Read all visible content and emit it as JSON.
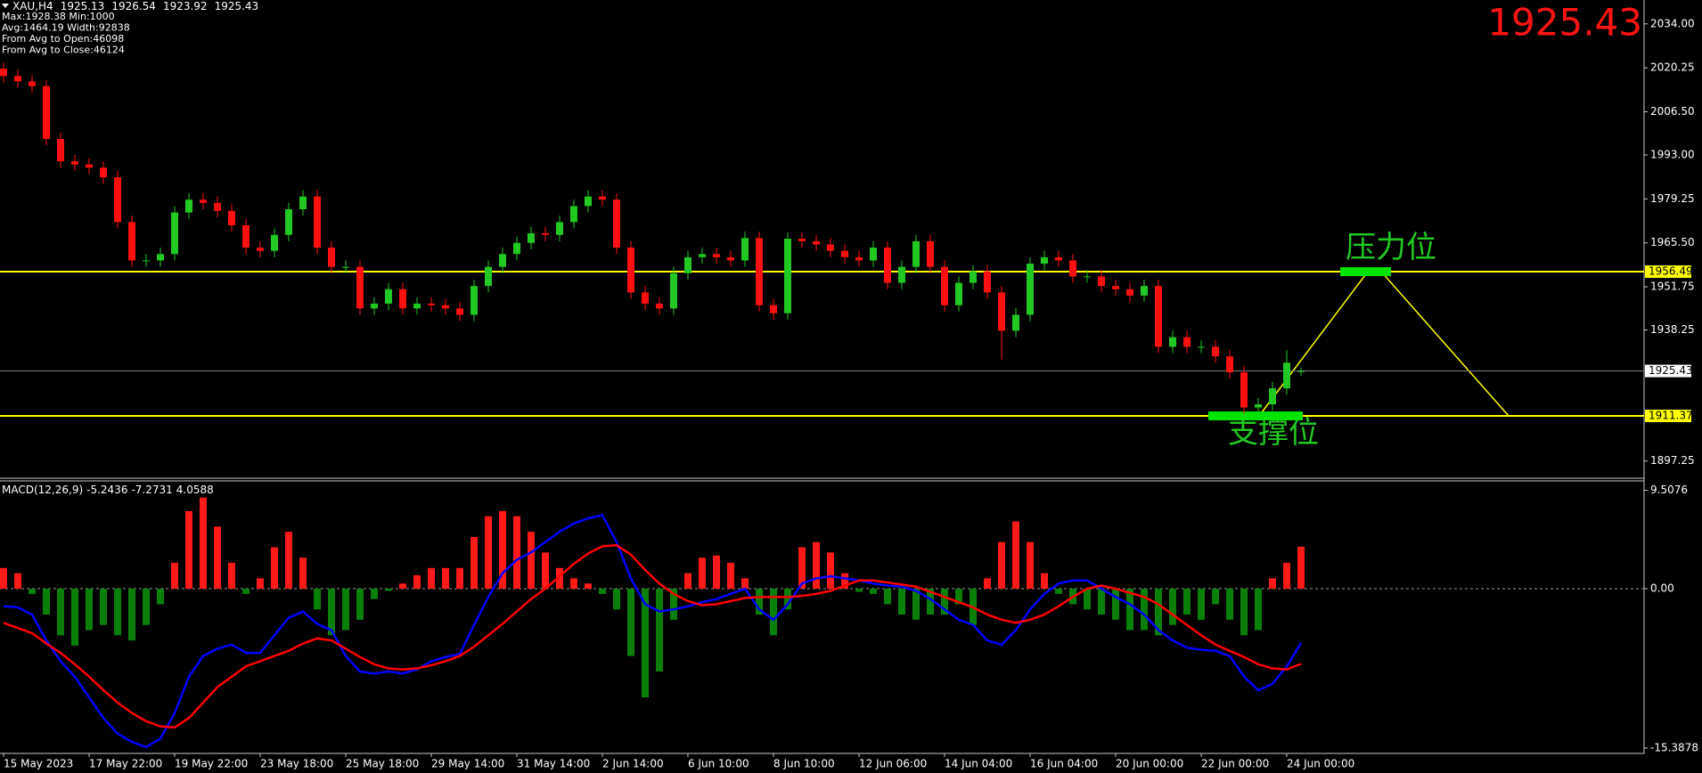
{
  "chart_data": [
    {
      "type": "candlestick",
      "title": "XAU,H4",
      "notes": [
        "Max:1928.38 Min:1000",
        "Avg:1464.19 Width:92838",
        "From Avg to Open:46098",
        "From Avg to Close:46124"
      ],
      "categories": [
        "15 May 2023",
        null,
        null,
        null,
        null,
        null,
        "17 May 22:00",
        null,
        null,
        null,
        null,
        null,
        "19 May 22:00",
        null,
        null,
        null,
        null,
        null,
        "23 May 18:00",
        null,
        null,
        null,
        null,
        null,
        "25 May 18:00",
        null,
        null,
        null,
        null,
        null,
        "29 May 14:00",
        null,
        null,
        null,
        null,
        null,
        "31 May 14:00",
        null,
        null,
        null,
        null,
        null,
        "2 Jun 14:00",
        null,
        null,
        null,
        null,
        null,
        "6 Jun 10:00",
        null,
        null,
        null,
        null,
        null,
        "8 Jun 10:00",
        null,
        null,
        null,
        null,
        null,
        "12 Jun 06:00",
        null,
        null,
        null,
        null,
        null,
        "14 Jun 04:00",
        null,
        null,
        null,
        null,
        null,
        "16 Jun 04:00",
        null,
        null,
        null,
        null,
        null,
        "20 Jun 00:00",
        null,
        null,
        null,
        null,
        null,
        "22 Jun 00:00",
        null,
        null,
        null,
        null,
        null,
        "24 Jun 00:00",
        null
      ],
      "open": [
        2020,
        2017.7,
        2016,
        2014.5,
        1998,
        1991,
        1990,
        1989,
        1986,
        1972,
        1960,
        1960,
        1962,
        1975,
        1979,
        1978,
        1975.5,
        1971,
        1964,
        1963,
        1968,
        1976,
        1980,
        1964,
        1958,
        1958,
        1945,
        1946.5,
        1951,
        1945,
        1946.5,
        1946,
        1945,
        1943,
        1952,
        1958,
        1962,
        1965.5,
        1968.5,
        1968,
        1972,
        1977,
        1980,
        1979,
        1964,
        1950,
        1946.5,
        1945,
        1956,
        1961,
        1962,
        1961,
        1960,
        1967,
        1946,
        1943.5,
        1966.8,
        1966,
        1965,
        1963,
        1961,
        1960,
        1964,
        1953,
        1958,
        1966,
        1958,
        1946,
        1953,
        1956.6,
        1950,
        1938,
        1943,
        1959,
        1961,
        1960,
        1955,
        1955,
        1952,
        1951,
        1949,
        1952,
        1933,
        1936,
        1933,
        1933,
        1930,
        1925,
        1914,
        1915,
        1920,
        1925.13
      ],
      "high": [
        2022,
        2019.7,
        2018,
        2016.5,
        2000,
        1993,
        1992,
        1991,
        1988,
        1974,
        1962,
        1964,
        1977,
        1981,
        1981,
        1980,
        1977.5,
        1973,
        1966,
        1970,
        1978,
        1982,
        1982,
        1966,
        1960,
        1960,
        1948.5,
        1953,
        1953,
        1948.5,
        1948.5,
        1948,
        1947,
        1954,
        1960,
        1964,
        1967.5,
        1970.5,
        1970.5,
        1974,
        1979,
        1982,
        1982,
        1981,
        1966,
        1952,
        1948.5,
        1958,
        1963,
        1964,
        1964,
        1963,
        1969,
        1969,
        1948,
        1968.8,
        1968.8,
        1968,
        1967,
        1965,
        1963,
        1966,
        1966,
        1960,
        1968,
        1968,
        1960,
        1955,
        1958.6,
        1958.6,
        1952,
        1945,
        1961,
        1963,
        1963,
        1962,
        1957,
        1957,
        1954,
        1953,
        1954,
        1954,
        1938,
        1938,
        1935,
        1935,
        1932,
        1927,
        1917,
        1922,
        1932,
        1926.54
      ],
      "low": [
        2015.7,
        2014,
        2012.5,
        1996,
        1989,
        1988,
        1987,
        1984,
        1970,
        1958,
        1958,
        1958,
        1960,
        1973,
        1976,
        1973.5,
        1969,
        1962,
        1961,
        1961,
        1966,
        1974,
        1962,
        1956,
        1956,
        1943,
        1943,
        1944.5,
        1943,
        1943,
        1944,
        1943,
        1941,
        1941,
        1950,
        1956,
        1960,
        1963.5,
        1966,
        1966,
        1970,
        1975,
        1977,
        1962,
        1948,
        1944.5,
        1943,
        1943,
        1954,
        1959,
        1959,
        1958,
        1958,
        1944,
        1941.5,
        1941.5,
        1964,
        1963,
        1961,
        1959,
        1958,
        1958,
        1951,
        1951,
        1956,
        1956,
        1944,
        1944,
        1951,
        1948,
        1929,
        1936,
        1941,
        1957,
        1958,
        1953,
        1953,
        1950,
        1949,
        1947,
        1947,
        1931,
        1931,
        1931,
        1931,
        1928,
        1923,
        1912,
        1912,
        1913,
        1918,
        1923.92
      ],
      "close": [
        2017.7,
        2016,
        2014.5,
        1998,
        1991,
        1990,
        1989,
        1986,
        1972,
        1960,
        1960,
        1962,
        1975,
        1979,
        1978,
        1975.5,
        1971,
        1964,
        1963,
        1968,
        1976,
        1980,
        1964,
        1958,
        1958,
        1945,
        1946.5,
        1951,
        1945,
        1946.5,
        1946,
        1945,
        1943,
        1952,
        1958,
        1962,
        1965.5,
        1968.5,
        1968,
        1972,
        1977,
        1980,
        1979,
        1964,
        1950,
        1946.5,
        1945,
        1956,
        1961,
        1962,
        1961,
        1960,
        1967,
        1946,
        1943.5,
        1966.8,
        1966,
        1965,
        1963,
        1961,
        1960,
        1964,
        1953,
        1958,
        1966,
        1958,
        1946,
        1953,
        1956.6,
        1950,
        1938,
        1943,
        1959,
        1961,
        1960,
        1955,
        1955,
        1952,
        1951,
        1949,
        1952,
        1933,
        1936,
        1933,
        1933,
        1930,
        1925,
        1914,
        1915,
        1920,
        1928,
        1925.43
      ],
      "up_color": "#22c922",
      "down_color": "#ff1010",
      "ylim": [
        1892.16,
        2041.46
      ],
      "yticks": [
        {
          "value": 2034,
          "label": "2034.00"
        },
        2020.25,
        {
          "value": 2006.5,
          "label": "2006.50"
        },
        {
          "value": 1993,
          "label": "1993.00"
        },
        1979.25,
        {
          "value": 1965.5,
          "label": "1965.50"
        },
        1951.75,
        1938.25,
        1897.25
      ],
      "levels": [
        {
          "value": 1956.49,
          "color": "#ffff00"
        },
        {
          "value": 1911.37,
          "color": "#ffff00"
        }
      ],
      "annotations": [
        "压力位",
        "支撑位"
      ]
    },
    {
      "type": "macd",
      "title": "MACD(12,26,9)",
      "values": [
        2.0,
        1.5,
        -0.5,
        -2.5,
        -4.5,
        -5.5,
        -4.0,
        -3.5,
        -4.5,
        -5.0,
        -3.5,
        -1.5,
        2.5,
        7.5,
        8.8,
        6.0,
        2.5,
        -0.5,
        1.0,
        4.0,
        5.5,
        3.0,
        -2.0,
        -4.5,
        -4.0,
        -3.0,
        -1.0,
        -0.2,
        0.5,
        1.3,
        2.0,
        2.0,
        2.0,
        5.0,
        7.0,
        7.5,
        7.0,
        5.5,
        3.5,
        2.0,
        1.0,
        0.5,
        -0.5,
        -2.0,
        -6.5,
        -10.5,
        -8.0,
        -3.0,
        1.5,
        3.0,
        3.2,
        2.5,
        1.0,
        -2.5,
        -4.5,
        -2.0,
        4.0,
        4.5,
        3.5,
        1.5,
        -0.3,
        -0.5,
        -1.5,
        -2.5,
        -3.0,
        -2.5,
        -2.5,
        -1.5,
        -3.5,
        1.0,
        4.5,
        6.5,
        4.5,
        1.5,
        -0.5,
        -1.5,
        -2.0,
        -2.5,
        -3.0,
        -4.0,
        -4.0,
        -4.5,
        -3.5,
        -2.5,
        -3.0,
        -1.5,
        -3.0,
        -4.5,
        -4.0,
        1.0,
        2.5,
        4.0588
      ],
      "up_color": "#ff1a1a",
      "down_color": "#0a800a",
      "series": [
        {
          "color": "#0000ff",
          "values": [
            -1.7,
            -1.8,
            -2.5,
            -5,
            -7,
            -8.5,
            -10.5,
            -12.5,
            -14,
            -14.8,
            -15.3,
            -14.5,
            -12,
            -8.5,
            -6.5,
            -5.8,
            -5.4,
            -6.2,
            -6.2,
            -4.5,
            -2.8,
            -2.2,
            -3.4,
            -4.0,
            -6.5,
            -8.0,
            -8.2,
            -8.0,
            -8.2,
            -7.8,
            -7.0,
            -6.6,
            -6.3,
            -3.5,
            -0.8,
            1.5,
            2.8,
            3.5,
            4.5,
            5.5,
            6.3,
            6.8,
            7.1,
            4.5,
            1.0,
            -1.5,
            -2.2,
            -2.0,
            -1.7,
            -1.3,
            -1.0,
            -0.5,
            0.0,
            -2.0,
            -3.0,
            -1.5,
            0.5,
            1.0,
            1.2,
            1.0,
            0.8,
            0.5,
            0.3,
            0.2,
            -0.2,
            -1.0,
            -2.0,
            -3.0,
            -3.5,
            -5.0,
            -5.4,
            -4.0,
            -2.0,
            -0.5,
            0.5,
            0.8,
            0.8,
            0.0,
            -0.8,
            -1.5,
            -2.5,
            -4.0,
            -5.0,
            -5.7,
            -5.9,
            -6.0,
            -6.5,
            -8.5,
            -9.8,
            -9.2,
            -7.5,
            -5.2436
          ]
        },
        {
          "color": "#ff0000",
          "values": [
            -3.3,
            -3.8,
            -4.3,
            -5.3,
            -6.2,
            -7.3,
            -8.5,
            -9.8,
            -11,
            -12,
            -12.8,
            -13.3,
            -13.4,
            -12.5,
            -11,
            -9.5,
            -8.5,
            -7.5,
            -7.0,
            -6.5,
            -6.0,
            -5.3,
            -4.8,
            -5.0,
            -5.8,
            -6.6,
            -7.3,
            -7.7,
            -7.8,
            -7.7,
            -7.4,
            -7.0,
            -6.5,
            -5.6,
            -4.5,
            -3.4,
            -2.2,
            -1.0,
            0.0,
            1.2,
            2.4,
            3.4,
            4.1,
            4.2,
            3.3,
            1.8,
            0.5,
            -0.5,
            -1.2,
            -1.6,
            -1.5,
            -1.2,
            -0.9,
            -0.8,
            -0.8,
            -0.8,
            -0.7,
            -0.5,
            -0.2,
            0.3,
            0.8,
            0.8,
            0.6,
            0.4,
            0.2,
            -0.3,
            -0.8,
            -1.3,
            -1.8,
            -2.5,
            -3.0,
            -3.3,
            -3.0,
            -2.5,
            -1.7,
            -0.8,
            0.0,
            0.3,
            0.0,
            -0.4,
            -0.8,
            -1.5,
            -2.5,
            -3.5,
            -4.5,
            -5.4,
            -6.0,
            -6.6,
            -7.3,
            -7.7,
            -7.8,
            -7.2731
          ]
        }
      ],
      "ylim": [
        -15.91,
        10.24
      ],
      "yticks": [
        9.5076,
        {
          "value": 0,
          "label": "0.00"
        },
        -15.3878
      ]
    }
  ]
}
